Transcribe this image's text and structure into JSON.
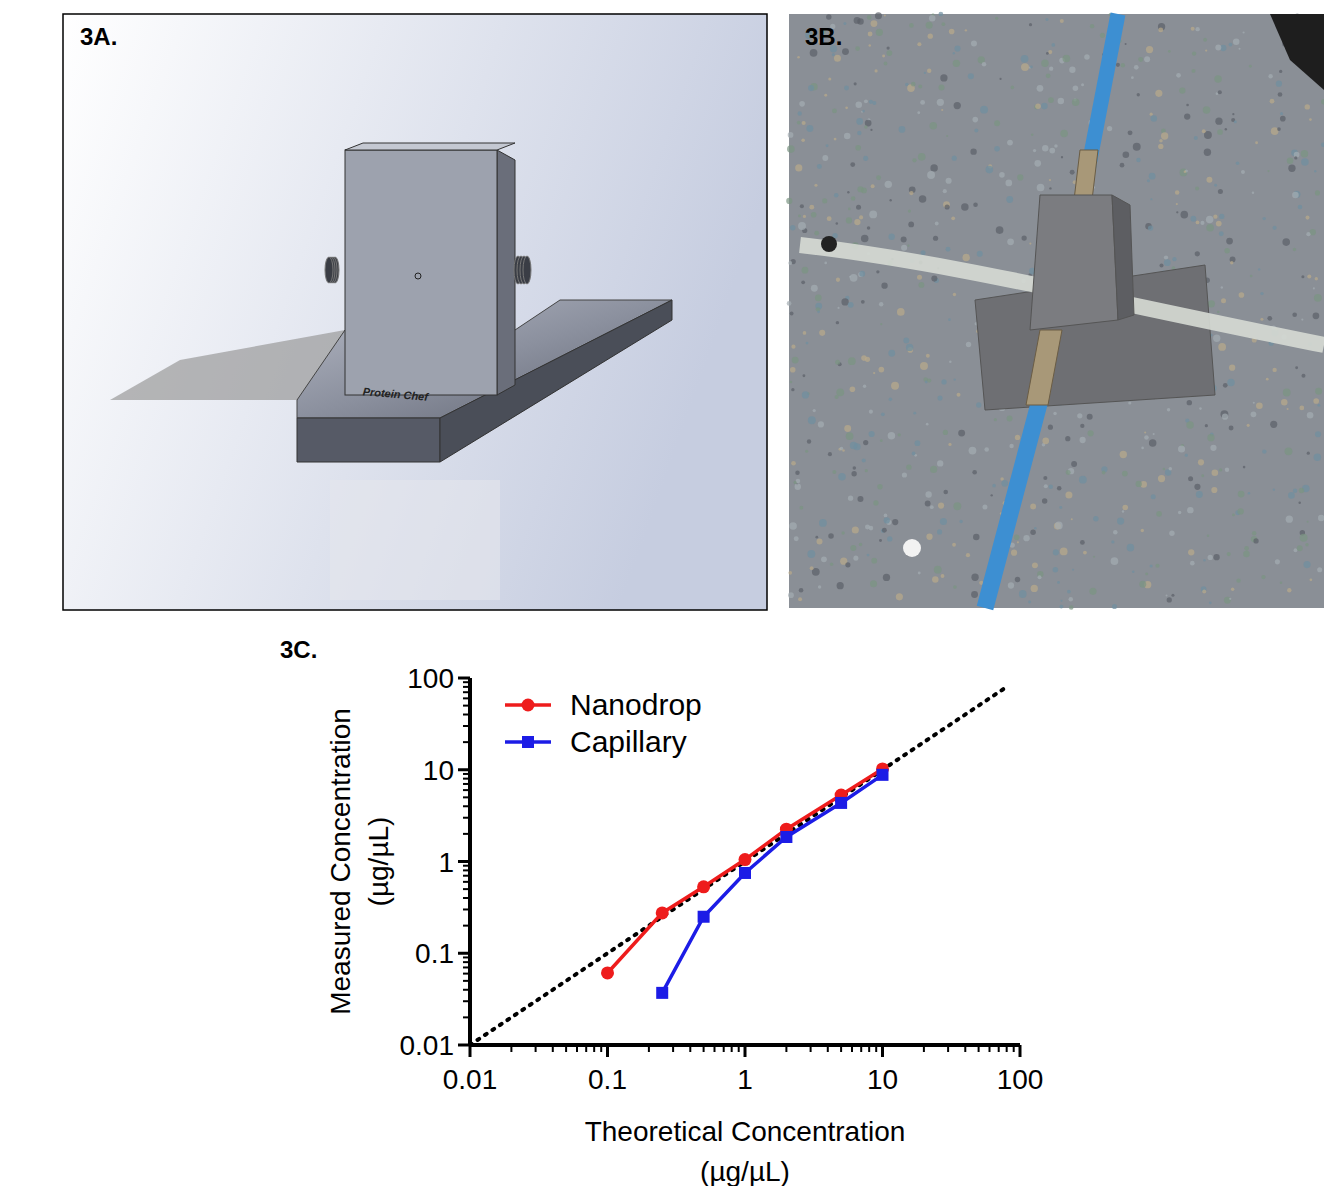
{
  "panels": {
    "a": {
      "label": "3A.",
      "engraving": "Protein Chef"
    },
    "b": {
      "label": "3B."
    },
    "c": {
      "label": "3C."
    }
  },
  "chart_data": {
    "type": "line",
    "xlabel": [
      "Theoretical Concentration",
      "(µg/µL)"
    ],
    "ylabel": [
      "Measured Concentration",
      "(µg/µL)"
    ],
    "log": true,
    "grid": false,
    "legend": "upper left",
    "xlim": [
      0.01,
      100
    ],
    "ylim": [
      0.01,
      100
    ],
    "xticks": [
      0.01,
      0.1,
      1,
      10,
      100
    ],
    "yticks": [
      0.01,
      0.1,
      1,
      10,
      100
    ],
    "series": [
      {
        "name": "Nanodrop",
        "color": "#ee1c1c",
        "marker": "circle",
        "line_style": "solid",
        "x": [
          0.1,
          0.25,
          0.5,
          1,
          2,
          5,
          10
        ],
        "values": [
          0.061,
          0.275,
          0.53,
          1.05,
          2.25,
          5.3,
          10.2
        ]
      },
      {
        "name": "Capillary",
        "color": "#1c1ce6",
        "marker": "square",
        "line_style": "solid",
        "x": [
          0.25,
          0.5,
          1,
          2,
          5,
          10
        ],
        "values": [
          0.037,
          0.25,
          0.75,
          1.85,
          4.35,
          8.8
        ]
      }
    ],
    "reference_line": {
      "x": [
        0.01,
        78
      ],
      "values": [
        0.01,
        78
      ],
      "color": "#000000",
      "line_style": "dotted"
    }
  }
}
